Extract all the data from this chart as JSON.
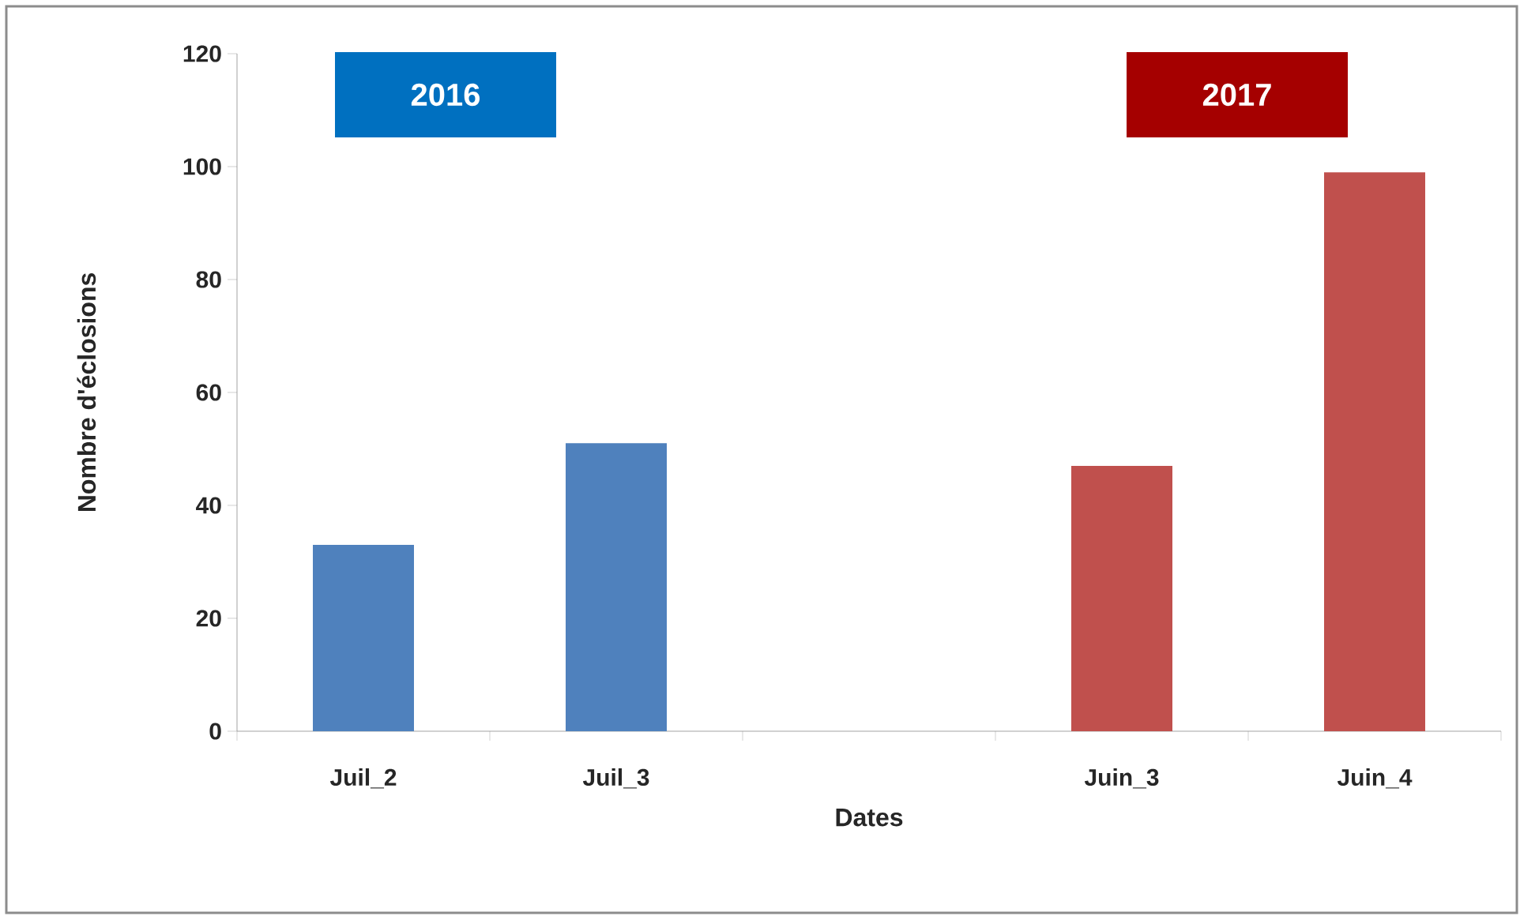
{
  "chart_data": {
    "type": "bar",
    "xlabel": "Dates",
    "ylabel": "Nombre d'éclosions",
    "categories": [
      "Juil_2",
      "Juil_3",
      null,
      "Juin_3",
      "Juin_4"
    ],
    "values": [
      33,
      51,
      null,
      47,
      99
    ],
    "colors": [
      "#4f81bd",
      "#4f81bd",
      null,
      "#c0504d",
      "#c0504d"
    ],
    "ylim": [
      0,
      120
    ],
    "yticks": [
      0,
      20,
      40,
      60,
      80,
      100,
      120
    ],
    "annotations": [
      "2016",
      "2017"
    ]
  }
}
